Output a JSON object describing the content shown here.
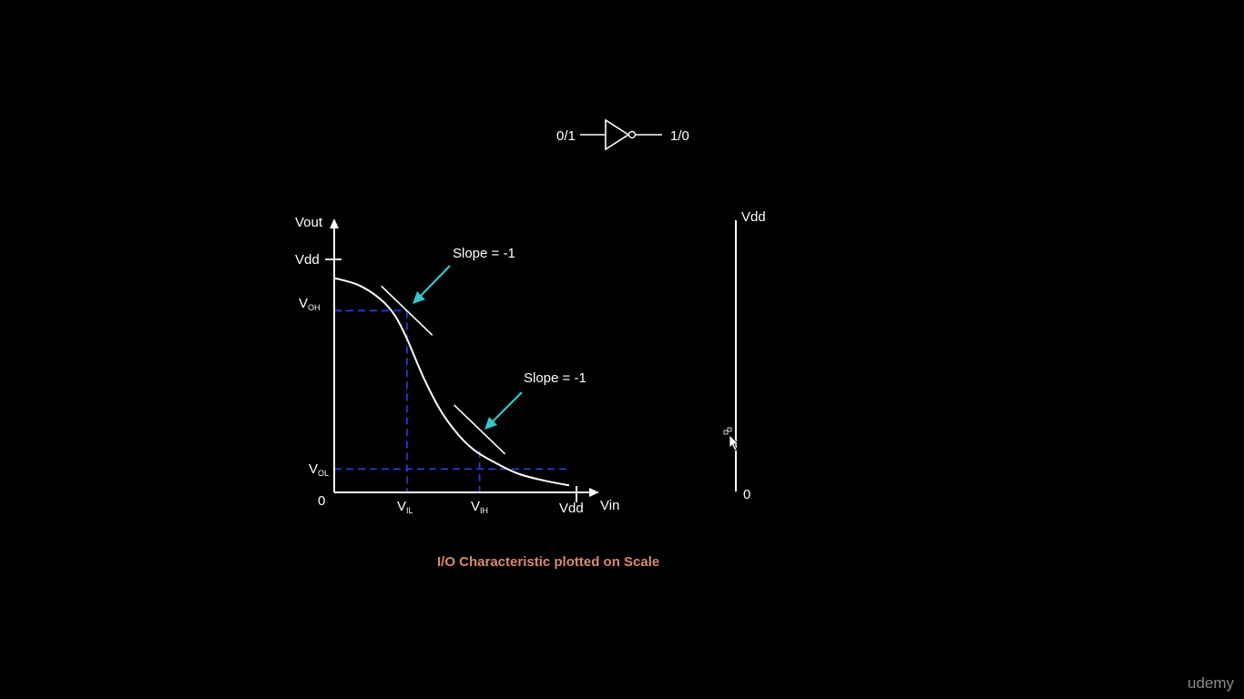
{
  "inverter": {
    "input_label": "0/1",
    "output_label": "1/0"
  },
  "chart_data": {
    "type": "line",
    "title": "",
    "xlabel": "Vin",
    "ylabel": "Vout",
    "x_tick_labels": {
      "origin": "0",
      "vil": "V",
      "vil_sub": "IL",
      "vih": "V",
      "vih_sub": "IH",
      "vdd": "Vdd"
    },
    "y_tick_labels": {
      "vdd": "Vdd",
      "voh": "V",
      "voh_sub": "OH",
      "vol": "V",
      "vol_sub": "OL"
    },
    "xlim": [
      0,
      1
    ],
    "ylim": [
      0,
      1
    ],
    "vdd_level": 1,
    "series": [
      {
        "name": "I/O characteristic",
        "x": [
          0.0,
          0.1,
          0.19,
          0.25,
          0.3,
          0.37,
          0.44,
          0.51,
          0.58,
          0.66,
          0.76,
          0.87,
          0.97
        ],
        "y": [
          0.92,
          0.89,
          0.83,
          0.76,
          0.66,
          0.49,
          0.35,
          0.25,
          0.18,
          0.13,
          0.08,
          0.05,
          0.03
        ]
      }
    ],
    "markers": {
      "vil": 0.3,
      "voh": 0.78,
      "vih": 0.6,
      "vol": 0.1
    },
    "annotations": [
      {
        "id": "slope1",
        "text": "Slope = -1",
        "at": "VIL/VOH"
      },
      {
        "id": "slope2",
        "text": "Slope = -1",
        "at": "VIH/VOL"
      }
    ],
    "caption": "I/O Characteristic plotted on Scale"
  },
  "scale": {
    "top_label": "Vdd",
    "bottom_label": "0"
  },
  "watermark": "udemy",
  "colors": {
    "background": "#000000",
    "line": "#ffffff",
    "guide": "#2b3bd6",
    "arrow": "#38c6c9",
    "caption": "#d88a6c",
    "watermark": "#8a8a8a"
  }
}
